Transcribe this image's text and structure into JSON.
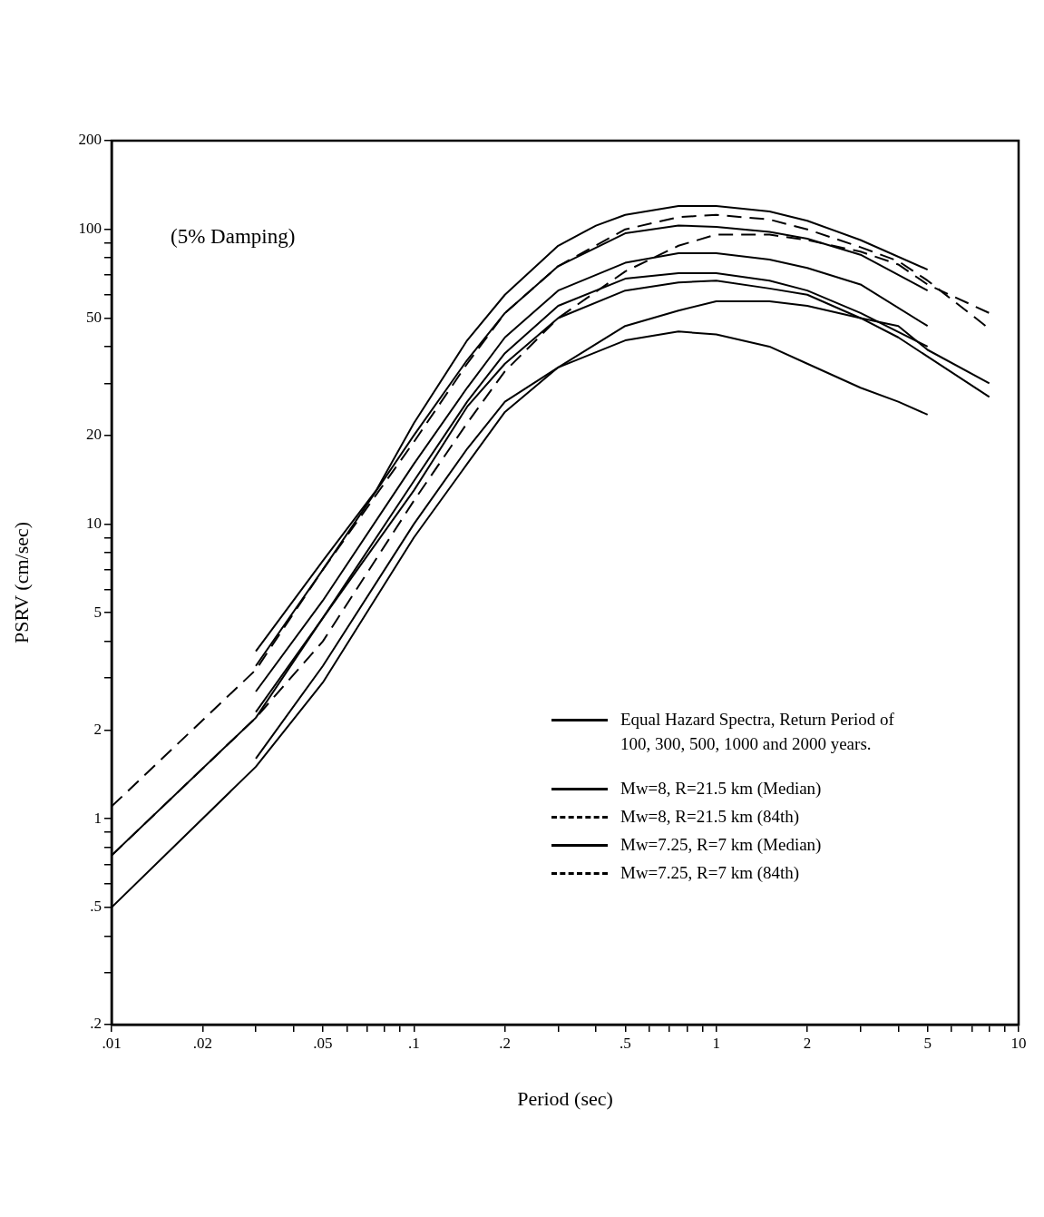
{
  "chart_data": {
    "type": "line",
    "xlabel": "Period (sec)",
    "ylabel": "PSRV (cm/sec)",
    "log": "xy",
    "legend": "bottom right",
    "annotations": [
      "(5% Damping)"
    ],
    "xlim": [
      0.01,
      10
    ],
    "ylim": [
      0.2,
      200
    ],
    "xticks": [
      {
        "value": 0.01,
        "label": ".01"
      },
      {
        "value": 0.02,
        "label": ".02"
      },
      {
        "value": 0.03,
        "label": null
      },
      {
        "value": 0.04,
        "label": null
      },
      {
        "value": 0.05,
        "label": ".05"
      },
      {
        "value": 0.06,
        "label": null
      },
      {
        "value": 0.07,
        "label": null
      },
      {
        "value": 0.08,
        "label": null
      },
      {
        "value": 0.09,
        "label": null
      },
      {
        "value": 0.1,
        "label": ".1"
      },
      {
        "value": 0.2,
        "label": ".2"
      },
      {
        "value": 0.3,
        "label": null
      },
      {
        "value": 0.4,
        "label": null
      },
      {
        "value": 0.5,
        "label": ".5"
      },
      {
        "value": 0.6,
        "label": null
      },
      {
        "value": 0.7,
        "label": null
      },
      {
        "value": 0.8,
        "label": null
      },
      {
        "value": 0.9,
        "label": null
      },
      1,
      2,
      {
        "value": 3,
        "label": null
      },
      {
        "value": 4,
        "label": null
      },
      5,
      {
        "value": 6,
        "label": null
      },
      {
        "value": 7,
        "label": null
      },
      {
        "value": 8,
        "label": null
      },
      {
        "value": 9,
        "label": null
      },
      10
    ],
    "yticks": [
      {
        "value": 0.2,
        "label": ".2"
      },
      {
        "value": 0.3,
        "label": null
      },
      {
        "value": 0.4,
        "label": null
      },
      {
        "value": 0.5,
        "label": ".5"
      },
      {
        "value": 0.6,
        "label": null
      },
      {
        "value": 0.7,
        "label": null
      },
      {
        "value": 0.8,
        "label": null
      },
      {
        "value": 0.9,
        "label": null
      },
      1,
      2,
      {
        "value": 3,
        "label": null
      },
      {
        "value": 4,
        "label": null
      },
      5,
      {
        "value": 6,
        "label": null
      },
      {
        "value": 7,
        "label": null
      },
      {
        "value": 8,
        "label": null
      },
      {
        "value": 9,
        "label": null
      },
      10,
      20,
      {
        "value": 30,
        "label": null
      },
      {
        "value": 40,
        "label": null
      },
      50,
      {
        "value": 60,
        "label": null
      },
      {
        "value": 70,
        "label": null
      },
      {
        "value": 80,
        "label": null
      },
      {
        "value": 90,
        "label": null
      },
      100,
      200
    ],
    "series": [
      {
        "name": "Equal Hazard Spectra, Return Period of 100, 300, 500, 1000 and 2000 years.",
        "color": "#000000",
        "line_style": "solid",
        "x": [
          0.03,
          0.05,
          0.1,
          0.15,
          0.2,
          0.3,
          0.5,
          0.75,
          1,
          1.5,
          2,
          3,
          4,
          5
        ],
        "values": [
          1.6,
          3.3,
          10,
          18,
          26,
          34,
          42,
          45,
          44,
          40,
          35,
          29,
          26,
          23.5
        ]
      },
      {
        "color": "#000000",
        "line_style": "solid",
        "x": [
          0.03,
          0.05,
          0.1,
          0.15,
          0.2,
          0.3,
          0.5,
          0.75,
          1,
          1.5,
          2,
          3,
          5
        ],
        "values": [
          2.3,
          4.8,
          14,
          26,
          38,
          55,
          68,
          71,
          71,
          67,
          62,
          52,
          40
        ]
      },
      {
        "color": "#000000",
        "line_style": "solid",
        "x": [
          0.03,
          0.05,
          0.1,
          0.15,
          0.2,
          0.3,
          0.5,
          0.75,
          1,
          1.5,
          2,
          3,
          5
        ],
        "values": [
          2.7,
          5.5,
          16,
          29,
          43,
          62,
          77,
          83,
          83,
          79,
          74,
          65,
          47
        ]
      },
      {
        "color": "#000000",
        "line_style": "solid",
        "x": [
          0.03,
          0.05,
          0.1,
          0.15,
          0.2,
          0.3,
          0.5,
          0.75,
          1,
          1.5,
          2,
          3,
          5
        ],
        "values": [
          3.3,
          7,
          20,
          36,
          52,
          75,
          97,
          103,
          102,
          98,
          93,
          82,
          62
        ]
      },
      {
        "color": "#000000",
        "line_style": "solid",
        "x": [
          0.03,
          0.05,
          0.075,
          0.1,
          0.15,
          0.2,
          0.3,
          0.4,
          0.5,
          0.75,
          1,
          1.5,
          2,
          3,
          5
        ],
        "values": [
          3.7,
          7.5,
          13,
          22,
          42,
          60,
          88,
          103,
          112,
          120,
          120,
          115,
          107,
          92,
          73
        ]
      },
      {
        "name": "Mw=8, R=21.5 km (Median)",
        "color": "#000000",
        "line_style": "solid",
        "x": [
          0.01,
          0.03,
          0.05,
          0.1,
          0.15,
          0.2,
          0.3,
          0.5,
          0.75,
          1,
          1.5,
          2,
          3,
          4,
          5,
          8
        ],
        "values": [
          0.5,
          1.5,
          2.9,
          9,
          16,
          24,
          34,
          47,
          53,
          57,
          57,
          55,
          50,
          47,
          39,
          30
        ]
      },
      {
        "name": "Mw=8, R=21.5 km (84th)",
        "color": "#000000",
        "line_style": "dashed",
        "x": [
          0.01,
          0.03,
          0.05,
          0.1,
          0.15,
          0.2,
          0.3,
          0.5,
          0.75,
          1,
          1.5,
          2,
          3,
          4,
          5,
          8
        ],
        "values": [
          0.75,
          2.2,
          4,
          12,
          22,
          33,
          50,
          72,
          88,
          96,
          96,
          92,
          84,
          76,
          65,
          52
        ]
      },
      {
        "name": "Mw=7.25, R=7 km (Median)",
        "color": "#000000",
        "line_style": "solid",
        "x": [
          0.01,
          0.03,
          0.05,
          0.1,
          0.15,
          0.2,
          0.3,
          0.5,
          0.75,
          1,
          1.5,
          2,
          3,
          4,
          5,
          8
        ],
        "values": [
          0.75,
          2.2,
          4.8,
          13,
          25,
          35,
          50,
          62,
          66,
          67,
          63,
          60,
          50,
          43,
          37,
          27
        ]
      },
      {
        "name": "Mw=7.25, R=7 km (84th)",
        "color": "#000000",
        "line_style": "dashed",
        "x": [
          0.01,
          0.03,
          0.05,
          0.1,
          0.15,
          0.2,
          0.3,
          0.5,
          0.75,
          1,
          1.5,
          2,
          3,
          4,
          5,
          8
        ],
        "values": [
          1.1,
          3.2,
          7,
          19,
          35,
          52,
          75,
          100,
          110,
          112,
          108,
          100,
          87,
          78,
          67,
          46
        ]
      }
    ]
  }
}
